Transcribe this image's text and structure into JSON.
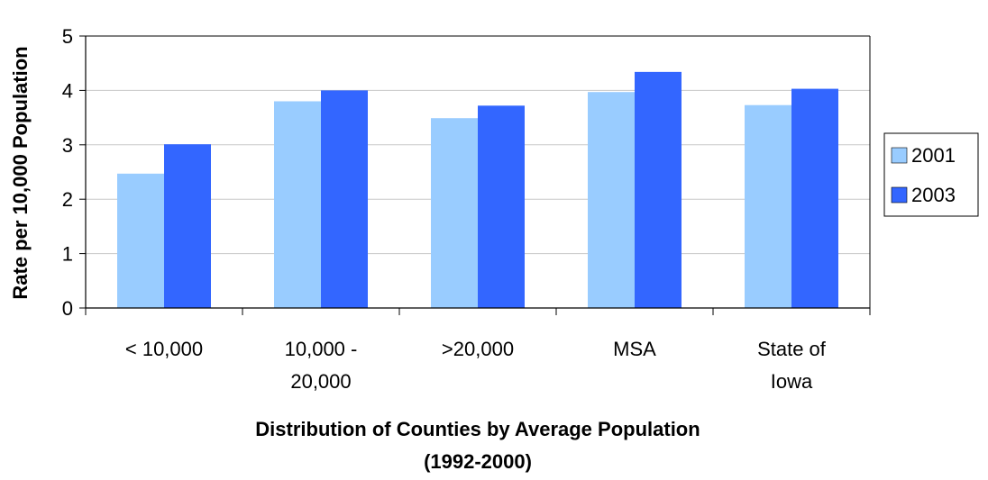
{
  "chart_data": {
    "type": "bar",
    "categories": [
      "< 10,000",
      "10,000 - 20,000",
      ">20,000",
      "MSA",
      "State of Iowa"
    ],
    "category_lines": [
      [
        "< 10,000"
      ],
      [
        "10,000 -",
        "20,000"
      ],
      [
        ">20,000"
      ],
      [
        "MSA"
      ],
      [
        "State of",
        "Iowa"
      ]
    ],
    "series": [
      {
        "name": "2001",
        "color": "#99ccff",
        "values": [
          2.47,
          3.8,
          3.49,
          3.97,
          3.73
        ]
      },
      {
        "name": "2003",
        "color": "#3366ff",
        "values": [
          3.01,
          4.0,
          3.72,
          4.34,
          4.03
        ]
      }
    ],
    "xlabel_lines": [
      "Distribution of Counties by Average Population",
      "(1992-2000)"
    ],
    "ylabel": "Rate per 10,000 Population",
    "ylim": [
      0,
      5
    ],
    "yticks": [
      "0",
      "1",
      "2",
      "3",
      "4",
      "5"
    ],
    "grid": true,
    "legend_position": "right"
  }
}
